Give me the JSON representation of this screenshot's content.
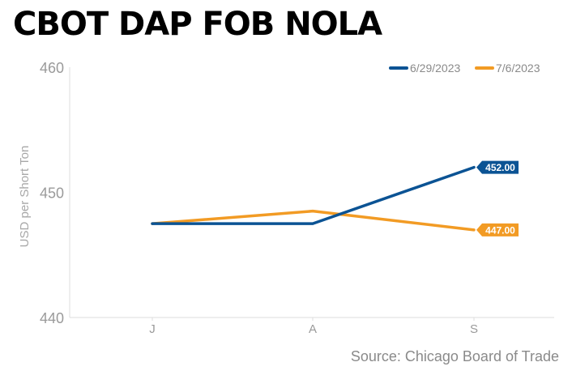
{
  "title": "CBOT DAP FOB NOLA",
  "source": "Source: Chicago Board of Trade",
  "colors": {
    "series1": "#0b5394",
    "series2": "#f29b24",
    "axis": "#dcdcdc",
    "tick": "#9a9a9a"
  },
  "chart_data": {
    "type": "line",
    "title": "CBOT DAP FOB NOLA",
    "ylabel": "USD per Short Ton",
    "xlabel": "",
    "categories": [
      "J",
      "A",
      "S"
    ],
    "ylim": [
      440,
      460
    ],
    "yticks": [
      440,
      450,
      460
    ],
    "grid": false,
    "legend": "top-right",
    "series": [
      {
        "name": "6/29/2023",
        "values": [
          447.5,
          447.5,
          452.0
        ],
        "color": "#0b5394",
        "end_label": "452.00"
      },
      {
        "name": "7/6/2023",
        "values": [
          447.5,
          448.5,
          447.0
        ],
        "color": "#f29b24",
        "end_label": "447.00"
      }
    ]
  }
}
